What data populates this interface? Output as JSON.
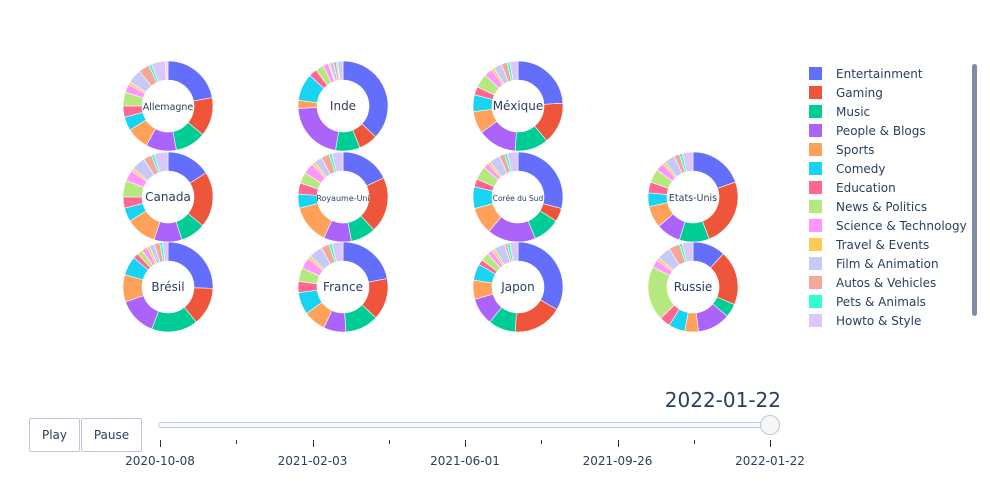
{
  "colors": {
    "Entertainment": "#636efa",
    "Gaming": "#ef553b",
    "Music": "#00cc96",
    "People & Blogs": "#ab63fa",
    "Sports": "#ffa15a",
    "Comedy": "#19d3f3",
    "Education": "#ff6692",
    "News & Politics": "#b6e880",
    "Science & Technology": "#ff97ff",
    "Travel & Events": "#fecb52",
    "Film & Animation": "#c6caf9",
    "Autos & Vehicles": "#f5a89a",
    "Pets & Animals": "#33ffcc",
    "Howto & Style": "#dcc7fb",
    "Nonprofits & Activism": "#ffd0e0"
  },
  "legend": [
    "Entertainment",
    "Gaming",
    "Music",
    "People & Blogs",
    "Sports",
    "Comedy",
    "Education",
    "News & Politics",
    "Science & Technology",
    "Travel & Events",
    "Film & Animation",
    "Autos & Vehicles",
    "Pets & Animals",
    "Howto & Style"
  ],
  "chart_data": {
    "type": "pie",
    "hole": 0.55,
    "frame": "2022-01-22",
    "countries": [
      {
        "name": "Allemagne",
        "values": {
          "Entertainment": 22,
          "Gaming": 14,
          "Music": 11,
          "People & Blogs": 11,
          "Sports": 8,
          "Comedy": 5,
          "Education": 4,
          "News & Politics": 5,
          "Science & Technology": 3,
          "Travel & Events": 1,
          "Film & Animation": 5,
          "Autos & Vehicles": 4,
          "Pets & Animals": 1,
          "Howto & Style": 5,
          "Nonprofits & Activism": 1
        }
      },
      {
        "name": "Inde",
        "values": {
          "Entertainment": 38,
          "Gaming": 7,
          "Music": 9,
          "People & Blogs": 22,
          "Sports": 3,
          "Comedy": 10,
          "Education": 3,
          "News & Politics": 3,
          "Science & Technology": 2,
          "Travel & Events": 0.5,
          "Film & Animation": 1.5,
          "Autos & Vehicles": 1,
          "Pets & Animals": 0.5,
          "Howto & Style": 2
        }
      },
      {
        "name": "Méxique",
        "values": {
          "Entertainment": 24,
          "Gaming": 15,
          "Music": 12,
          "People & Blogs": 14,
          "Sports": 8,
          "Comedy": 6,
          "Education": 3,
          "News & Politics": 5,
          "Science & Technology": 3,
          "Travel & Events": 1,
          "Film & Animation": 3,
          "Autos & Vehicles": 2,
          "Pets & Animals": 1,
          "Howto & Style": 3
        }
      },
      {
        "name": "Canada",
        "values": {
          "Entertainment": 16,
          "Gaming": 20,
          "Music": 9,
          "People & Blogs": 10,
          "Sports": 11,
          "Comedy": 5,
          "Education": 4,
          "News & Politics": 6,
          "Science & Technology": 4,
          "Travel & Events": 1,
          "Film & Animation": 5,
          "Autos & Vehicles": 3,
          "Pets & Animals": 1,
          "Howto & Style": 5
        }
      },
      {
        "name": "Royaume-Uni",
        "values": {
          "Entertainment": 18,
          "Gaming": 20,
          "Music": 9,
          "People & Blogs": 10,
          "Sports": 14,
          "Comedy": 5,
          "Education": 4,
          "News & Politics": 4,
          "Science & Technology": 4,
          "Travel & Events": 1,
          "Film & Animation": 3,
          "Autos & Vehicles": 3,
          "Pets & Animals": 1,
          "Howto & Style": 4
        }
      },
      {
        "name": "Corée du Sud",
        "values": {
          "Entertainment": 30,
          "Gaming": 5,
          "Music": 10,
          "People & Blogs": 18,
          "Sports": 10,
          "Comedy": 8,
          "Education": 3,
          "News & Politics": 5,
          "Science & Technology": 2,
          "Travel & Events": 1,
          "Film & Animation": 4,
          "Autos & Vehicles": 2,
          "Pets & Animals": 1,
          "Howto & Style": 4
        }
      },
      {
        "name": "Etats-Unis",
        "values": {
          "Entertainment": 20,
          "Gaming": 25,
          "Music": 11,
          "People & Blogs": 9,
          "Sports": 8,
          "Comedy": 5,
          "Education": 4,
          "News & Politics": 5,
          "Science & Technology": 3,
          "Travel & Events": 1,
          "Film & Animation": 4,
          "Autos & Vehicles": 2,
          "Pets & Animals": 1,
          "Howto & Style": 4
        }
      },
      {
        "name": "Brésil",
        "values": {
          "Entertainment": 26,
          "Gaming": 14,
          "Music": 17,
          "People & Blogs": 14,
          "Sports": 10,
          "Comedy": 7,
          "Education": 2,
          "News & Politics": 2,
          "Science & Technology": 2,
          "Travel & Events": 1,
          "Film & Animation": 2,
          "Autos & Vehicles": 2,
          "Pets & Animals": 1,
          "Howto & Style": 2
        }
      },
      {
        "name": "France",
        "values": {
          "Entertainment": 22,
          "Gaming": 15,
          "Music": 12,
          "People & Blogs": 8,
          "Sports": 8,
          "Comedy": 8,
          "Education": 4,
          "News & Politics": 5,
          "Science & Technology": 4,
          "Travel & Events": 1,
          "Film & Animation": 5,
          "Autos & Vehicles": 3,
          "Pets & Animals": 1,
          "Howto & Style": 4
        }
      },
      {
        "name": "Japon",
        "values": {
          "Entertainment": 34,
          "Gaming": 18,
          "Music": 10,
          "People & Blogs": 10,
          "Sports": 7,
          "Comedy": 6,
          "Education": 2,
          "News & Politics": 3,
          "Science & Technology": 2,
          "Travel & Events": 1,
          "Film & Animation": 4,
          "Autos & Vehicles": 1,
          "Pets & Animals": 1,
          "Howto & Style": 3
        }
      },
      {
        "name": "Russie",
        "values": {
          "Entertainment": 12,
          "Gaming": 20,
          "Music": 5,
          "People & Blogs": 12,
          "Sports": 5,
          "Comedy": 6,
          "Education": 4,
          "News & Politics": 20,
          "Science & Technology": 3,
          "Travel & Events": 1,
          "Film & Animation": 5,
          "Autos & Vehicles": 4,
          "Pets & Animals": 1,
          "Howto & Style": 4
        }
      }
    ],
    "slider": {
      "current": "2022-01-22",
      "ticks": [
        "2020-10-08",
        "2021-02-03",
        "2021-06-01",
        "2021-09-26",
        "2022-01-22"
      ],
      "position": 1.0
    }
  },
  "controls": {
    "play_label": "Play",
    "pause_label": "Pause"
  }
}
